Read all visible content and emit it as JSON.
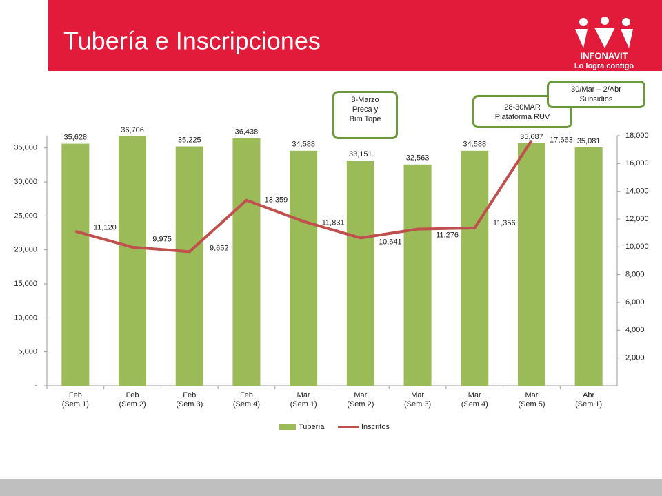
{
  "header": {
    "title": "Tubería  e Inscripciones",
    "logo_name": "INFONAVIT",
    "logo_tagline": "Lo logra contigo"
  },
  "chart_data": {
    "type": "bar",
    "categories": [
      "Feb\n(Sem 1)",
      "Feb\n(Sem 2)",
      "Feb\n(Sem 3)",
      "Feb\n(Sem 4)",
      "Mar\n(Sem 1)",
      "Mar\n(Sem 2)",
      "Mar\n(Sem 3)",
      "Mar\n(Sem 4)",
      "Mar\n(Sem 5)",
      "Abr\n(Sem 1)"
    ],
    "series": [
      {
        "name": "Tubería",
        "color": "#9bbb59",
        "type": "bar",
        "values": [
          35628,
          36706,
          35225,
          36438,
          34588,
          33151,
          32563,
          34588,
          35687,
          35081
        ],
        "value_labels": [
          "35,628",
          "36,706",
          "35,225",
          "36,438",
          "34,588",
          "33,151",
          "32,563",
          "34,588",
          "35,687",
          "35,081"
        ]
      },
      {
        "name": "Inscritos",
        "color": "#c0504d",
        "type": "line",
        "axis": "y2",
        "values": [
          11120,
          9975,
          9652,
          13359,
          11831,
          10641,
          11276,
          11356,
          17663,
          null
        ],
        "value_labels": [
          "11,120",
          "9,975",
          "9,652",
          "13,359",
          "11,831",
          "10,641",
          "11,276",
          "11,356",
          "17,663",
          null
        ]
      }
    ],
    "ylim": [
      0,
      36800
    ],
    "yticks": [
      {
        "value": 0,
        "label": "-"
      },
      {
        "value": 5000,
        "label": "5,000"
      },
      {
        "value": 10000,
        "label": "10,000"
      },
      {
        "value": 15000,
        "label": "15,000"
      },
      {
        "value": 20000,
        "label": "20,000"
      },
      {
        "value": 25000,
        "label": "25,000"
      },
      {
        "value": 30000,
        "label": "30,000"
      },
      {
        "value": 35000,
        "label": "35,000"
      }
    ],
    "y2lim": [
      0,
      18000
    ],
    "y2ticks": [
      {
        "value": 2000,
        "label": "2,000"
      },
      {
        "value": 4000,
        "label": "4,000"
      },
      {
        "value": 6000,
        "label": "6,000"
      },
      {
        "value": 8000,
        "label": "8,000"
      },
      {
        "value": 10000,
        "label": "10,000"
      },
      {
        "value": 12000,
        "label": "12,000"
      },
      {
        "value": 14000,
        "label": "14,000"
      },
      {
        "value": 16000,
        "label": "16,000"
      },
      {
        "value": 18000,
        "label": "18,000"
      }
    ],
    "annotations": [
      "8-Marzo\nPreca y\nBim Tope",
      "28-30MAR\nPlataforma RUV",
      "30/Mar – 2/Abr\nSubsidios"
    ],
    "legend": "bottom"
  }
}
